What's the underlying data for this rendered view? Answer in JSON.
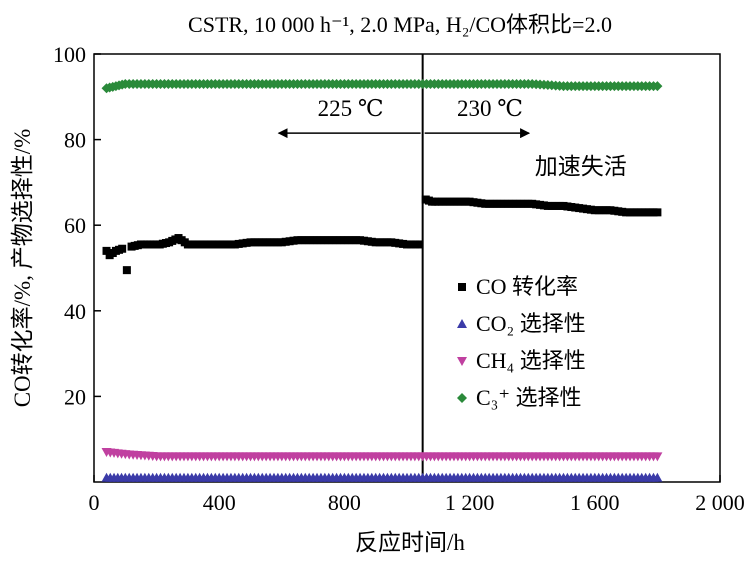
{
  "chart_data": {
    "type": "scatter",
    "title": "CSTR, 10 000 h⁻¹, 2.0 MPa, H₂/CO体积比=2.0",
    "xlabel": "反应时间/h",
    "ylabel": "CO转化率/%, 产物选择性/%",
    "xlim": [
      0,
      2000
    ],
    "ylim": [
      0,
      100
    ],
    "xticks": [
      0,
      400,
      800,
      1200,
      1600,
      2000
    ],
    "xtick_labels": [
      "0",
      "400",
      "800",
      "1 200",
      "1 600",
      "2 000"
    ],
    "yticks": [
      20,
      40,
      60,
      80,
      100
    ],
    "ytick_labels": [
      "20",
      "40",
      "60",
      "80",
      "100"
    ],
    "grid": false,
    "legend_position": "right-middle",
    "phase_boundary_x": 1050,
    "annotations": {
      "left_phase": "225 ℃",
      "right_phase": "230 ℃",
      "deactivation": "加速失活"
    },
    "series": [
      {
        "name": "CO 转化率",
        "marker": "square",
        "color": "#000000",
        "x": [
          40,
          50,
          70,
          90,
          105,
          120,
          150,
          180,
          210,
          240,
          270,
          300,
          350,
          400,
          450,
          500,
          550,
          600,
          650,
          700,
          750,
          800,
          850,
          900,
          950,
          1000,
          1040,
          1060,
          1080,
          1100,
          1150,
          1200,
          1250,
          1300,
          1350,
          1400,
          1450,
          1500,
          1550,
          1600,
          1650,
          1700,
          1750,
          1800
        ],
        "y": [
          54,
          53,
          54,
          54.5,
          49.5,
          55,
          55.5,
          55.5,
          55.5,
          56,
          57,
          55.5,
          55.5,
          55.5,
          55.5,
          56,
          56,
          56,
          56.5,
          56.5,
          56.5,
          56.5,
          56.5,
          56,
          56,
          55.5,
          55.5,
          66,
          65.5,
          65.5,
          65.5,
          65.5,
          65,
          65,
          65,
          65,
          64.5,
          64.5,
          64,
          63.5,
          63.5,
          63,
          63,
          63
        ]
      },
      {
        "name": "CO₂ 选择性",
        "marker": "triangle-up",
        "color": "#3b3ba8",
        "x": [
          40,
          100,
          200,
          300,
          400,
          500,
          600,
          700,
          800,
          900,
          1000,
          1050,
          1100,
          1200,
          1300,
          1400,
          1500,
          1600,
          1700,
          1800
        ],
        "y": [
          1,
          1,
          1,
          1,
          1,
          1,
          1,
          1,
          1,
          1,
          1,
          1,
          1,
          1,
          1,
          1,
          1,
          1,
          1,
          1
        ]
      },
      {
        "name": "CH₄ 选择性",
        "marker": "triangle-down",
        "color": "#c040a0",
        "x": [
          40,
          100,
          200,
          300,
          400,
          500,
          600,
          700,
          800,
          900,
          1000,
          1050,
          1100,
          1200,
          1300,
          1400,
          1500,
          1600,
          1700,
          1800
        ],
        "y": [
          7,
          6.5,
          6,
          6,
          6,
          6,
          6,
          6,
          6,
          6,
          6,
          6,
          6,
          6,
          6,
          6,
          6,
          6,
          6,
          6
        ]
      },
      {
        "name": "C₃⁺ 选择性",
        "marker": "diamond",
        "color": "#2a8a3a",
        "x": [
          40,
          70,
          100,
          150,
          200,
          250,
          300,
          400,
          500,
          600,
          700,
          800,
          900,
          1000,
          1050,
          1100,
          1200,
          1300,
          1400,
          1500,
          1600,
          1700,
          1800
        ],
        "y": [
          92,
          92.5,
          93,
          93,
          93,
          93,
          93,
          93,
          93,
          93,
          93,
          93,
          93,
          93,
          93,
          93,
          93,
          93,
          93,
          92.5,
          92.5,
          92.5,
          92.5
        ]
      }
    ]
  }
}
